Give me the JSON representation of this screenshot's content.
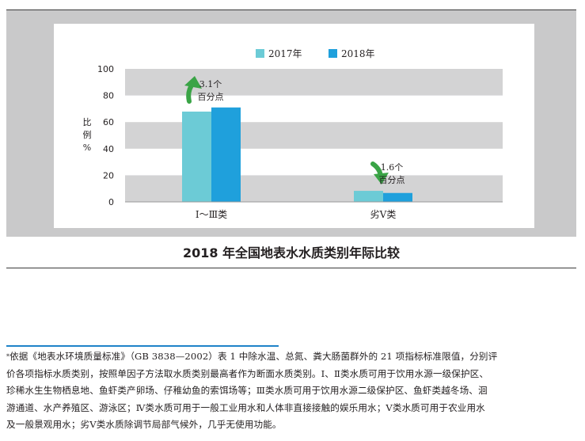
{
  "chart_data": {
    "type": "bar",
    "title": "2018 年全国地表水水质类别年际比较",
    "ylabel": "比例%",
    "ylabel_chars": [
      "比",
      "例",
      "%"
    ],
    "ylim": [
      0,
      100
    ],
    "yticks": [
      0,
      20,
      40,
      60,
      80,
      100
    ],
    "grid": true,
    "legend_position": "top-center",
    "categories": [
      "Ⅰ～Ⅲ类",
      "劣Ⅴ类"
    ],
    "series": [
      {
        "name": "2017年",
        "color": "#6ccbd6",
        "values": [
          67.9,
          8.3
        ]
      },
      {
        "name": "2018年",
        "color": "#1fa0dc",
        "values": [
          71.0,
          6.7
        ]
      }
    ],
    "annotations": [
      {
        "category": "Ⅰ～Ⅲ类",
        "direction": "up",
        "lines": [
          "3.1个",
          "百分点"
        ],
        "arrow_color": "#3aa446"
      },
      {
        "category": "劣Ⅴ类",
        "direction": "down",
        "lines": [
          "1.6个",
          "百分点"
        ],
        "arrow_color": "#3aa446"
      }
    ]
  },
  "footnote": {
    "marker": "*",
    "lines": [
      "依据《地表水环境质量标准》（GB 3838—2002）表 1 中除水温、总氮、粪大肠菌群外的 21 项指标标准限值，分别评",
      "价各项指标水质类别，按照单因子方法取水质类别最高者作为断面水质类别。Ⅰ、Ⅱ类水质可用于饮用水源一级保护区、",
      "珍稀水生生物栖息地、鱼虾类产卵场、仔稚幼鱼的索饵场等；Ⅲ类水质可用于饮用水源二级保护区、鱼虾类越冬场、洄",
      "游通道、水产养殖区、游泳区；Ⅳ类水质可用于一般工业用水和人体非直接接触的娱乐用水；Ⅴ类水质可用于农业用水",
      "及一般景观用水；劣Ⅴ类水质除调节局部气候外，几乎无使用功能。"
    ]
  }
}
